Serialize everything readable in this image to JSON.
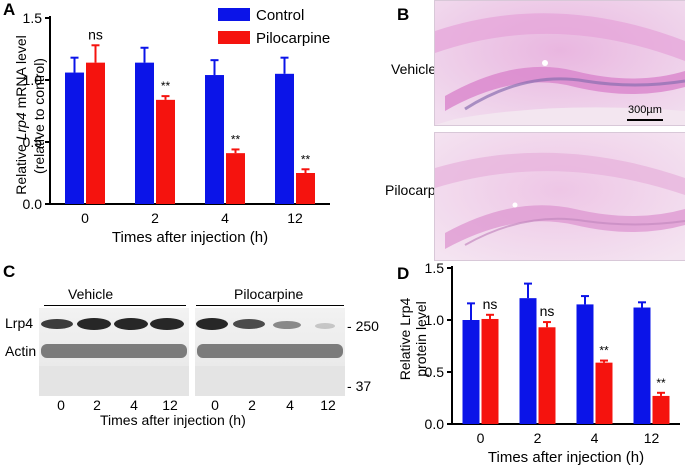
{
  "panels": {
    "a": {
      "letter": "A"
    },
    "b": {
      "letter": "B",
      "top_label": "Vehicle",
      "bottom_label": "Pilocarpine",
      "scale_text": "300µm"
    },
    "c": {
      "letter": "C",
      "group1": "Vehicle",
      "group2": "Pilocarpine",
      "row1": "Lrp4",
      "row2": "Actin",
      "marker1": "250",
      "marker2": "37",
      "lanes": [
        "0",
        "2",
        "4",
        "12",
        "0",
        "2",
        "4",
        "12"
      ],
      "xlabel": "Times after injection (h)"
    },
    "d": {
      "letter": "D"
    }
  },
  "colors": {
    "control": "#0b14e8",
    "pilocarpine": "#f5130e"
  },
  "chart_data": [
    {
      "type": "bar",
      "categories": [
        "0",
        "2",
        "4",
        "12"
      ],
      "series": [
        {
          "name": "Control",
          "values": [
            1.06,
            1.14,
            1.04,
            1.05
          ],
          "errors": [
            0.12,
            0.12,
            0.12,
            0.13
          ]
        },
        {
          "name": "Pilocarpine",
          "values": [
            1.14,
            0.84,
            0.41,
            0.25
          ],
          "errors": [
            0.14,
            0.03,
            0.03,
            0.03
          ]
        }
      ],
      "annotations": [
        "ns",
        "**",
        "**",
        "**"
      ],
      "xlabel": "Times after injection (h)",
      "ylabel_main": "Relative ",
      "ylabel_italic": "Lrp4",
      "ylabel_rest": " mRNA level",
      "ylabel2": "(relative to control)",
      "ylim": [
        0,
        1.5
      ],
      "yticks": [
        "0.0",
        "0.5",
        "1.0",
        "1.5"
      ],
      "legend_position": "top-right"
    },
    {
      "type": "bar",
      "categories": [
        "0",
        "2",
        "4",
        "12"
      ],
      "series": [
        {
          "name": "Control",
          "values": [
            1.0,
            1.21,
            1.15,
            1.12
          ],
          "errors": [
            0.16,
            0.14,
            0.08,
            0.05
          ]
        },
        {
          "name": "Pilocarpine",
          "values": [
            1.01,
            0.93,
            0.59,
            0.27
          ],
          "errors": [
            0.04,
            0.05,
            0.02,
            0.03
          ]
        }
      ],
      "annotations": [
        "ns",
        "ns",
        "**",
        "**"
      ],
      "xlabel": "Times after injection (h)",
      "ylabel": "Relative Lrp4",
      "ylabel2": "protein level",
      "ylim": [
        0,
        1.5
      ],
      "yticks": [
        "0.0",
        "0.5",
        "1.0",
        "1.5"
      ]
    }
  ]
}
